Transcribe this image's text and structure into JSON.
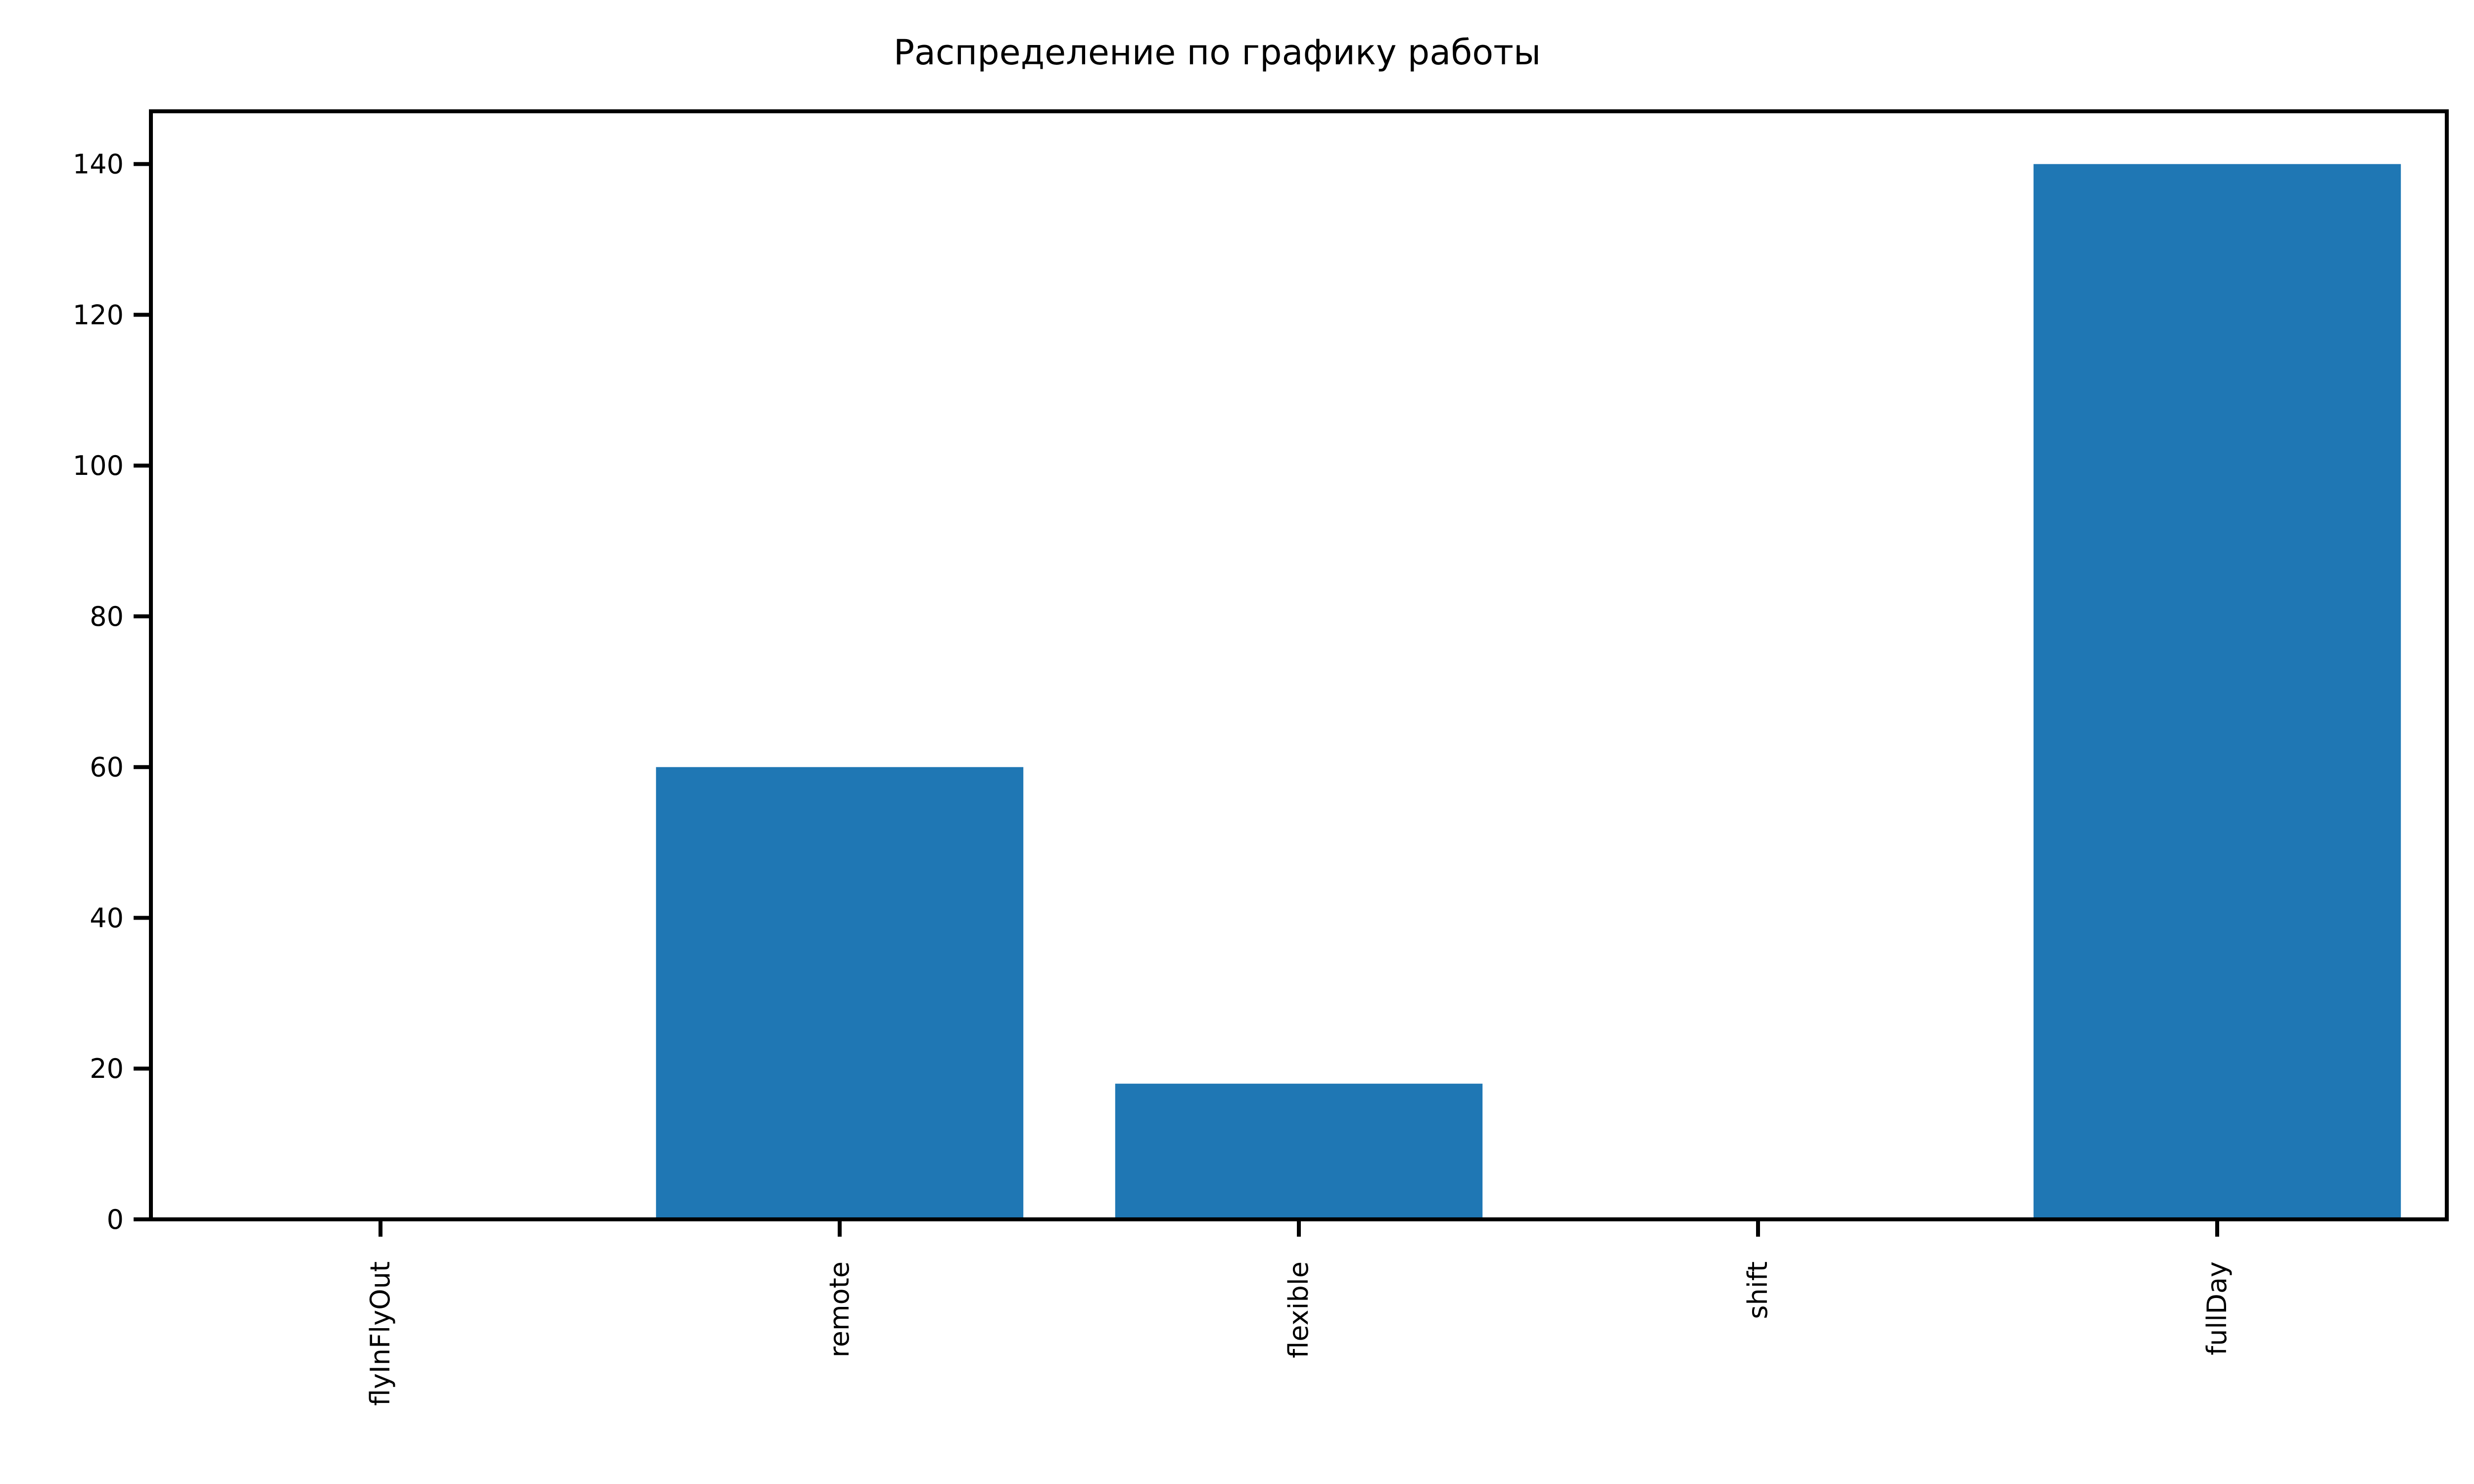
{
  "chart_data": {
    "type": "bar",
    "title": "Распределение по графику работы",
    "xlabel": "",
    "ylabel": "",
    "categories": [
      "flyInFlyOut",
      "remote",
      "flexible",
      "shift",
      "fullDay"
    ],
    "values": [
      0,
      60,
      18,
      0,
      140
    ],
    "ylim": [
      0,
      147
    ],
    "yticks": [
      0,
      20,
      40,
      60,
      80,
      100,
      120,
      140
    ],
    "ytick_labels": [
      "0",
      "20",
      "40",
      "60",
      "80",
      "100",
      "120",
      "140"
    ],
    "bar_color": "#1f77b4",
    "grid": false,
    "legend": "none"
  }
}
